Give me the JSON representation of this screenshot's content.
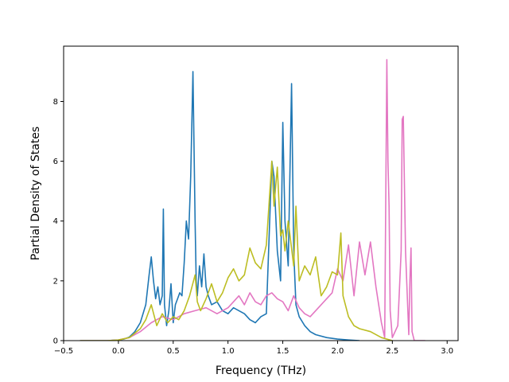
{
  "chart_data": {
    "type": "line",
    "title": "",
    "xlabel": "Frequency (THz)",
    "ylabel": "Partial Density of States",
    "xlim": [
      -0.5,
      3.1
    ],
    "ylim": [
      0,
      9.85
    ],
    "xticks": [
      -0.5,
      0.0,
      0.5,
      1.0,
      1.5,
      2.0,
      2.5,
      3.0
    ],
    "xtick_labels": [
      "−0.5",
      "0.0",
      "0.5",
      "1.0",
      "1.5",
      "2.0",
      "2.5",
      "3.0"
    ],
    "yticks": [
      0,
      2,
      4,
      6,
      8
    ],
    "ytick_labels": [
      "0",
      "2",
      "4",
      "6",
      "8"
    ],
    "grid": false,
    "legend": "none",
    "series": [
      {
        "color": "#1f77b4",
        "x": [
          -0.35,
          -0.1,
          0.0,
          0.05,
          0.1,
          0.15,
          0.2,
          0.25,
          0.28,
          0.3,
          0.32,
          0.34,
          0.36,
          0.38,
          0.4,
          0.41,
          0.42,
          0.44,
          0.46,
          0.48,
          0.5,
          0.52,
          0.54,
          0.56,
          0.58,
          0.6,
          0.62,
          0.64,
          0.66,
          0.68,
          0.7,
          0.71,
          0.72,
          0.74,
          0.76,
          0.78,
          0.8,
          0.82,
          0.85,
          0.9,
          0.95,
          1.0,
          1.05,
          1.1,
          1.15,
          1.2,
          1.25,
          1.3,
          1.35,
          1.4,
          1.42,
          1.45,
          1.48,
          1.5,
          1.52,
          1.55,
          1.58,
          1.6,
          1.62,
          1.65,
          1.7,
          1.75,
          1.8,
          1.9,
          2.0,
          2.1,
          2.2
        ],
        "y": [
          0,
          0,
          0.02,
          0.05,
          0.12,
          0.3,
          0.6,
          1.2,
          2.2,
          2.8,
          2.0,
          1.4,
          1.8,
          1.2,
          1.5,
          4.4,
          1.2,
          0.5,
          1.0,
          1.9,
          0.6,
          1.2,
          1.4,
          1.6,
          1.5,
          2.6,
          4.0,
          3.4,
          5.5,
          9.0,
          4.0,
          2.0,
          1.5,
          2.5,
          1.8,
          2.9,
          1.8,
          1.5,
          1.2,
          1.3,
          1.0,
          0.9,
          1.1,
          1.0,
          0.9,
          0.7,
          0.6,
          0.8,
          0.9,
          6.0,
          5.5,
          3.0,
          2.0,
          7.3,
          4.0,
          2.5,
          8.6,
          3.0,
          1.2,
          0.8,
          0.5,
          0.3,
          0.2,
          0.1,
          0.05,
          0.02,
          0
        ]
      },
      {
        "color": "#e377c2",
        "x": [
          -0.35,
          -0.1,
          0.0,
          0.1,
          0.2,
          0.3,
          0.4,
          0.5,
          0.6,
          0.7,
          0.8,
          0.9,
          1.0,
          1.05,
          1.1,
          1.15,
          1.2,
          1.25,
          1.3,
          1.35,
          1.4,
          1.45,
          1.5,
          1.55,
          1.6,
          1.65,
          1.7,
          1.75,
          1.8,
          1.85,
          1.9,
          1.95,
          2.0,
          2.05,
          2.1,
          2.15,
          2.2,
          2.25,
          2.3,
          2.35,
          2.4,
          2.43,
          2.45,
          2.46,
          2.47,
          2.48,
          2.5,
          2.55,
          2.58,
          2.59,
          2.6,
          2.62,
          2.65,
          2.66,
          2.67,
          2.68,
          2.7,
          2.8
        ],
        "y": [
          0,
          0,
          0.02,
          0.1,
          0.3,
          0.6,
          0.8,
          0.7,
          0.9,
          1.0,
          1.1,
          0.9,
          1.1,
          1.3,
          1.5,
          1.2,
          1.6,
          1.3,
          1.2,
          1.5,
          1.6,
          1.4,
          1.3,
          1.0,
          1.5,
          1.1,
          0.9,
          0.8,
          1.0,
          1.2,
          1.4,
          1.6,
          2.4,
          2.0,
          3.2,
          1.5,
          3.3,
          2.2,
          3.3,
          1.8,
          0.6,
          0.1,
          9.4,
          6.0,
          4.5,
          1.0,
          0.1,
          0.5,
          3.0,
          7.4,
          7.5,
          3.0,
          0.2,
          2.0,
          3.1,
          0.3,
          0.0,
          0.0
        ]
      },
      {
        "color": "#bcbd22",
        "x": [
          -0.35,
          -0.1,
          0.0,
          0.1,
          0.2,
          0.25,
          0.3,
          0.35,
          0.4,
          0.45,
          0.5,
          0.55,
          0.6,
          0.65,
          0.7,
          0.72,
          0.75,
          0.8,
          0.85,
          0.9,
          0.95,
          1.0,
          1.05,
          1.1,
          1.15,
          1.2,
          1.25,
          1.3,
          1.35,
          1.4,
          1.42,
          1.45,
          1.48,
          1.5,
          1.52,
          1.55,
          1.6,
          1.62,
          1.65,
          1.7,
          1.75,
          1.8,
          1.85,
          1.9,
          1.95,
          2.0,
          2.03,
          2.05,
          2.1,
          2.15,
          2.2,
          2.3,
          2.4,
          2.5
        ],
        "y": [
          0,
          0,
          0.02,
          0.1,
          0.4,
          0.7,
          1.2,
          0.5,
          0.9,
          0.6,
          0.8,
          0.7,
          1.0,
          1.5,
          2.2,
          1.3,
          1.0,
          1.4,
          1.9,
          1.3,
          1.6,
          2.1,
          2.4,
          2.0,
          2.2,
          3.1,
          2.6,
          2.4,
          3.2,
          6.0,
          4.5,
          5.8,
          3.5,
          3.7,
          3.0,
          4.0,
          2.5,
          4.5,
          2.0,
          2.5,
          2.2,
          2.8,
          1.5,
          1.8,
          2.3,
          2.2,
          3.6,
          1.5,
          0.8,
          0.5,
          0.4,
          0.3,
          0.1,
          0.0
        ]
      }
    ]
  }
}
